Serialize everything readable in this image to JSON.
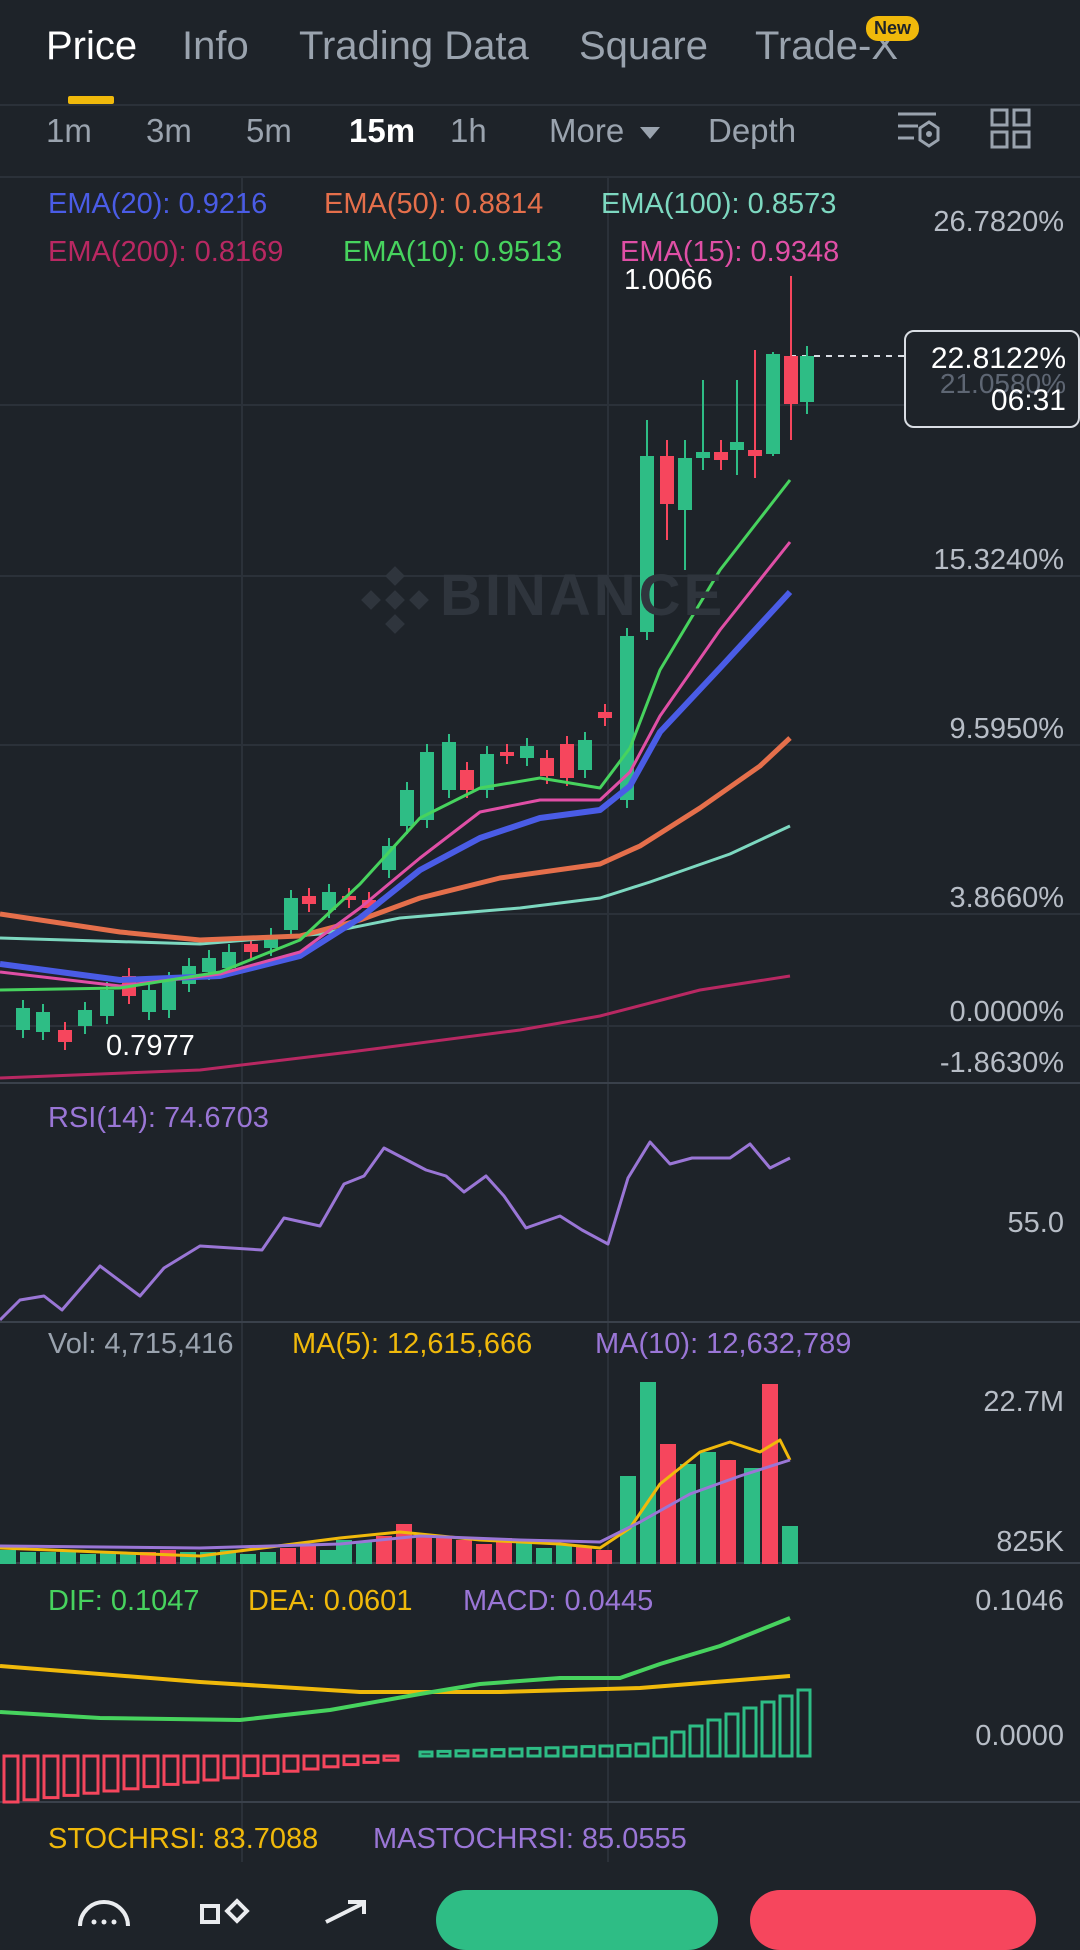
{
  "tabs": [
    {
      "label": "Price"
    },
    {
      "label": "Info"
    },
    {
      "label": "Trading Data"
    },
    {
      "label": "Square"
    },
    {
      "label": "Trade-X"
    }
  ],
  "new_badge": "New",
  "intervals": [
    {
      "label": "1m"
    },
    {
      "label": "3m"
    },
    {
      "label": "5m"
    },
    {
      "label": "15m"
    },
    {
      "label": "1h"
    }
  ],
  "more_label": "More",
  "depth_label": "Depth",
  "ema_legend": {
    "ema20": "EMA(20): 0.9216",
    "ema50": "EMA(50): 0.8814",
    "ema100": "EMA(100): 0.8573",
    "ema200": "EMA(200): 0.8169",
    "ema10": "EMA(10): 0.9513",
    "ema15": "EMA(15): 0.9348"
  },
  "price_axis": [
    "26.7820%",
    "21.0580%",
    "15.3240%",
    "9.5950%",
    "3.8660%",
    "0.0000%",
    "-1.8630%"
  ],
  "high_label": "1.0066",
  "low_label": "0.7977",
  "current_percent": "22.8122%",
  "countdown": "06:31",
  "watermark": "BINANCE",
  "rsi": {
    "label": "RSI(14): 74.6703",
    "axis": "55.0"
  },
  "vol": {
    "label": "Vol: 4,715,416",
    "ma5": "MA(5): 12,615,666",
    "ma10": "MA(10): 12,632,789",
    "axis_top": "22.7M",
    "axis_bottom": "825K"
  },
  "macd": {
    "dif": "DIF: 0.1047",
    "dea": "DEA: 0.0601",
    "macd": "MACD: 0.0445",
    "axis_top": "0.1046",
    "axis_mid": "0.0000"
  },
  "stoch": {
    "label": "STOCHRSI: 83.7088",
    "ma": "MASTOCHRSI: 85.0555"
  },
  "colors": {
    "up": "#2ebd85",
    "down": "#f6465d",
    "ema20": "#4a5ce6",
    "ema50": "#e56f4b",
    "ema100": "#7dd8c0",
    "ema200": "#b82862",
    "ema10": "#47d35e",
    "ema15": "#e04fa6",
    "rsi": "#9a76d6",
    "ma5": "#f0b90b",
    "ma10": "#9a76d6",
    "dif": "#47d35e",
    "dea": "#f0b90b",
    "accent": "#f0b90b"
  }
}
